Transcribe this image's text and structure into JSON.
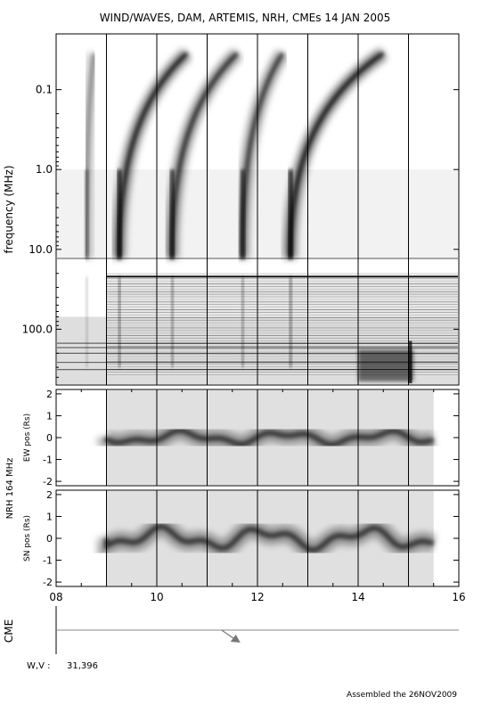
{
  "chart_data": [
    {
      "type": "heatmap",
      "title": "WIND/WAVES, DAM, ARTEMIS, NRH, CMEs  14 JAN 2005",
      "ylabel": "frequency (MHz)",
      "yscale": "log",
      "yticks": [
        "0.1",
        "1.0",
        "10.0",
        "100.0"
      ],
      "ytick_values": [
        0.1,
        1.0,
        10.0,
        100.0
      ],
      "ylim": [
        0.02,
        500
      ],
      "xlim": [
        8,
        16
      ],
      "hour_lines": [
        9,
        10,
        11,
        12,
        13,
        14,
        15
      ],
      "bursts": [
        {
          "start": 8.6,
          "end": 8.75,
          "intensity": 0.4
        },
        {
          "start": 9.25,
          "end": 10.6,
          "intensity": 0.95
        },
        {
          "start": 10.3,
          "end": 11.6,
          "intensity": 0.85
        },
        {
          "start": 11.7,
          "end": 12.5,
          "intensity": 0.8
        },
        {
          "start": 12.65,
          "end": 14.5,
          "intensity": 1.0
        }
      ],
      "colormap": "inverse-grayscale"
    },
    {
      "type": "heatmap",
      "group_label": "NRH 164 MHz",
      "ylabel": "EW pos (Rs)",
      "yticks": [
        "-2",
        "-1",
        "0",
        "1",
        "2"
      ],
      "ytick_values": [
        -2,
        -1,
        0,
        1,
        2
      ],
      "ylim": [
        -2.2,
        2.2
      ],
      "xlim": [
        8,
        16
      ],
      "data_start": 9.0,
      "data_end": 15.5
    },
    {
      "type": "heatmap",
      "group_label": "NRH 164 MHz",
      "ylabel": "SN pos (Rs)",
      "yticks": [
        "-2",
        "-1",
        "0",
        "1",
        "2"
      ],
      "ytick_values": [
        -2,
        -1,
        0,
        1,
        2
      ],
      "ylim": [
        -2.2,
        2.2
      ],
      "xlim": [
        8,
        16
      ],
      "data_start": 9.0,
      "data_end": 15.5,
      "xticks": [
        "08",
        "10",
        "12",
        "14",
        "16"
      ],
      "xtick_values": [
        8,
        10,
        12,
        14,
        16
      ]
    },
    {
      "type": "scatter",
      "ylabel": "CME",
      "xlim": [
        8,
        16
      ],
      "events": [
        {
          "time": 11.5,
          "label": ""
        }
      ]
    }
  ],
  "footer": {
    "wv_label": "W,V :",
    "wv_value": "31,396",
    "assembled": "Assembled the 26NOV2009"
  }
}
